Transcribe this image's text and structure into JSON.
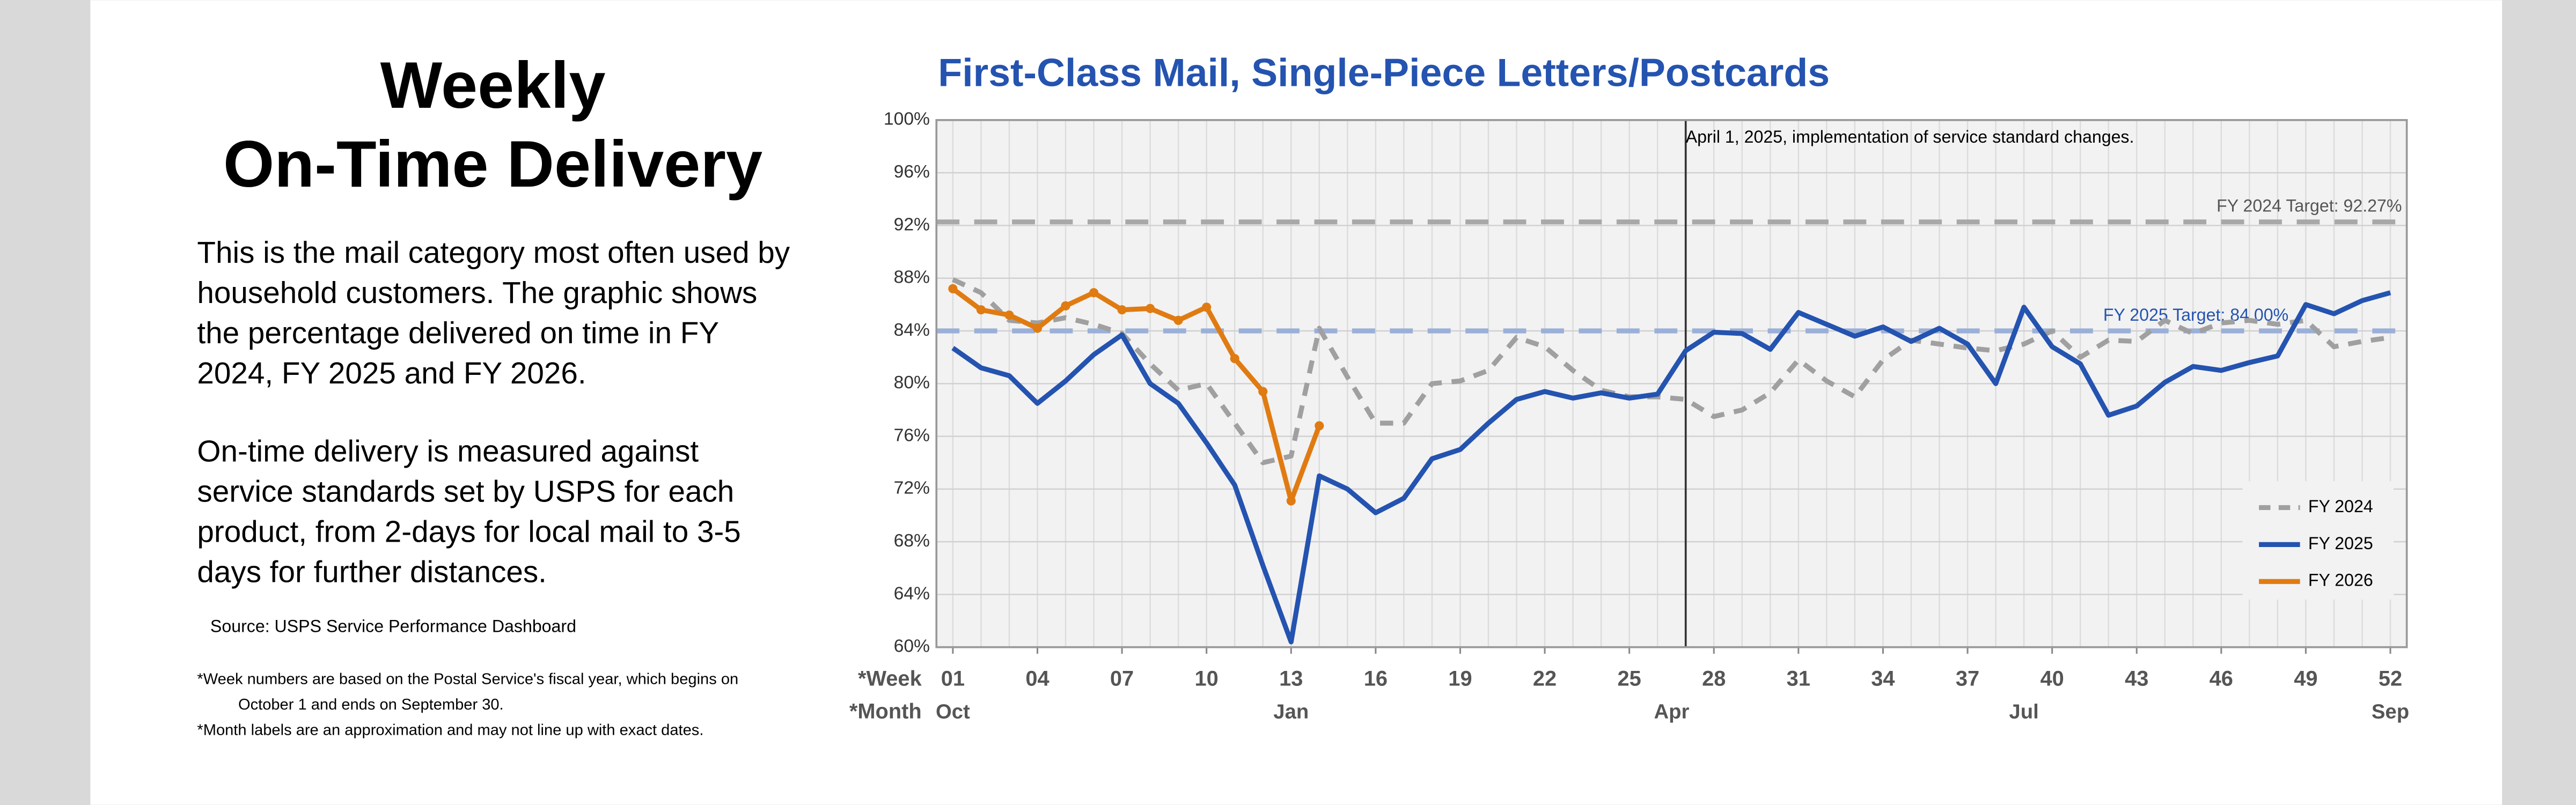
{
  "left_panel": {
    "heading_lines": [
      "Weekly",
      "On-Time Delivery"
    ],
    "paragraph_1_lines": [
      "This is the mail category most often used by",
      "household customers. The graphic shows",
      "the percentage delivered on time in FY",
      "2024, FY 2025 and FY 2026."
    ],
    "paragraph_2_lines": [
      "On-time delivery is measured against",
      "service standards set by USPS for each",
      "product, from 2-days for local mail to 3-5",
      "days for further distances."
    ],
    "source": "Source: USPS Service Performance Dashboard",
    "footnote_lines": [
      "*Week numbers are based on the Postal Service's fiscal year, which begins on",
      "October 1 and ends on September 30.",
      "*Month labels are an approximation and may not line up with exact dates."
    ]
  },
  "chart_data": {
    "type": "line",
    "title": "First-Class Mail, Single-Piece Letters/Postcards",
    "x_label": "*Week",
    "month_row_label": "*Month",
    "x": [
      1,
      2,
      3,
      4,
      5,
      6,
      7,
      8,
      9,
      10,
      11,
      12,
      13,
      14,
      15,
      16,
      17,
      18,
      19,
      20,
      21,
      22,
      23,
      24,
      25,
      26,
      27,
      28,
      29,
      30,
      31,
      32,
      33,
      34,
      35,
      36,
      37,
      38,
      39,
      40,
      41,
      42,
      43,
      44,
      45,
      46,
      47,
      48,
      49,
      50,
      51,
      52
    ],
    "xlim": [
      1,
      52
    ],
    "xticks": [
      {
        "value": 1,
        "label": "01"
      },
      {
        "value": 4,
        "label": "04"
      },
      {
        "value": 7,
        "label": "07"
      },
      10,
      13,
      16,
      19,
      22,
      25,
      28,
      31,
      34,
      37,
      40,
      43,
      46,
      49,
      52
    ],
    "month_ticks": [
      {
        "value": 1,
        "label": "Oct"
      },
      {
        "value": 13,
        "label": "Jan"
      },
      {
        "value": 26.5,
        "label": "Apr"
      },
      {
        "value": 39,
        "label": "Jul"
      },
      {
        "value": 52,
        "label": "Sep"
      }
    ],
    "ylim": [
      60,
      100
    ],
    "yticks": [
      {
        "value": 60,
        "label": "60%"
      },
      {
        "value": 64,
        "label": "64%"
      },
      {
        "value": 68,
        "label": "68%"
      },
      {
        "value": 72,
        "label": "72%"
      },
      {
        "value": 76,
        "label": "76%"
      },
      {
        "value": 80,
        "label": "80%"
      },
      {
        "value": 84,
        "label": "84%"
      },
      {
        "value": 88,
        "label": "88%"
      },
      {
        "value": 92,
        "label": "92%"
      },
      {
        "value": 96,
        "label": "96%"
      },
      {
        "value": 100,
        "label": "100%"
      }
    ],
    "grid": true,
    "legend_position": "lower right",
    "series": [
      {
        "name": "FY 2024",
        "color": "#a0a0a0",
        "dashed": true,
        "values": [
          87.9,
          86.9,
          84.8,
          84.6,
          85,
          84.5,
          83.8,
          81.5,
          79.5,
          80,
          77,
          74,
          74.5,
          84.2,
          80.5,
          77,
          77,
          80,
          80.2,
          81,
          83.5,
          82.8,
          81,
          79.5,
          79,
          79,
          78.8,
          77.5,
          78,
          79.3,
          81.8,
          80.2,
          79,
          81.8,
          83.3,
          83,
          82.7,
          82.5,
          83,
          84,
          82,
          83.3,
          83.2,
          84.8,
          83.8,
          84.6,
          84.8,
          84.5,
          84.8,
          82.8,
          83.2,
          83.5
        ]
      },
      {
        "name": "FY 2025",
        "color": "#2453b0",
        "dashed": false,
        "values": [
          82.7,
          81.2,
          80.6,
          78.5,
          80.2,
          82.2,
          83.7,
          80,
          78.5,
          75.5,
          72.3,
          66.2,
          60.4,
          73,
          72,
          70.2,
          71.3,
          74.3,
          75,
          77,
          78.8,
          79.4,
          78.9,
          79.3,
          78.9,
          79.2,
          82.5,
          83.9,
          83.8,
          82.6,
          85.4,
          84.5,
          83.6,
          84.3,
          83.2,
          84.2,
          83,
          80,
          85.8,
          82.8,
          81.5,
          77.6,
          78.3,
          80.1,
          81.3,
          81,
          81.6,
          82.1,
          86,
          85.3,
          86.3,
          86.9
        ]
      },
      {
        "name": "FY 2026",
        "color": "#e07b12",
        "dashed": false,
        "markers": true,
        "values": [
          87.2,
          85.6,
          85.2,
          84.2,
          85.9,
          86.9,
          85.6,
          85.7,
          84.8,
          85.8,
          81.9,
          79.4,
          71.1,
          76.8,
          null,
          null,
          null,
          null,
          null,
          null,
          null,
          null,
          null,
          null,
          null,
          null,
          null,
          null,
          null,
          null,
          null,
          null,
          null,
          null,
          null,
          null,
          null,
          null,
          null,
          null,
          null,
          null,
          null,
          null,
          null,
          null,
          null,
          null,
          null,
          null,
          null,
          null
        ]
      }
    ],
    "target_lines": [
      {
        "value": 92.27,
        "label": "FY 2024 Target: 92.27%",
        "color": "#a8a8a8"
      },
      {
        "value": 84.0,
        "label": "FY 2025 Target: 84.00%",
        "color": "#9bb0d8"
      }
    ],
    "event_line": {
      "x": 27,
      "label": "April 1, 2025, implementation of service standard changes."
    }
  }
}
